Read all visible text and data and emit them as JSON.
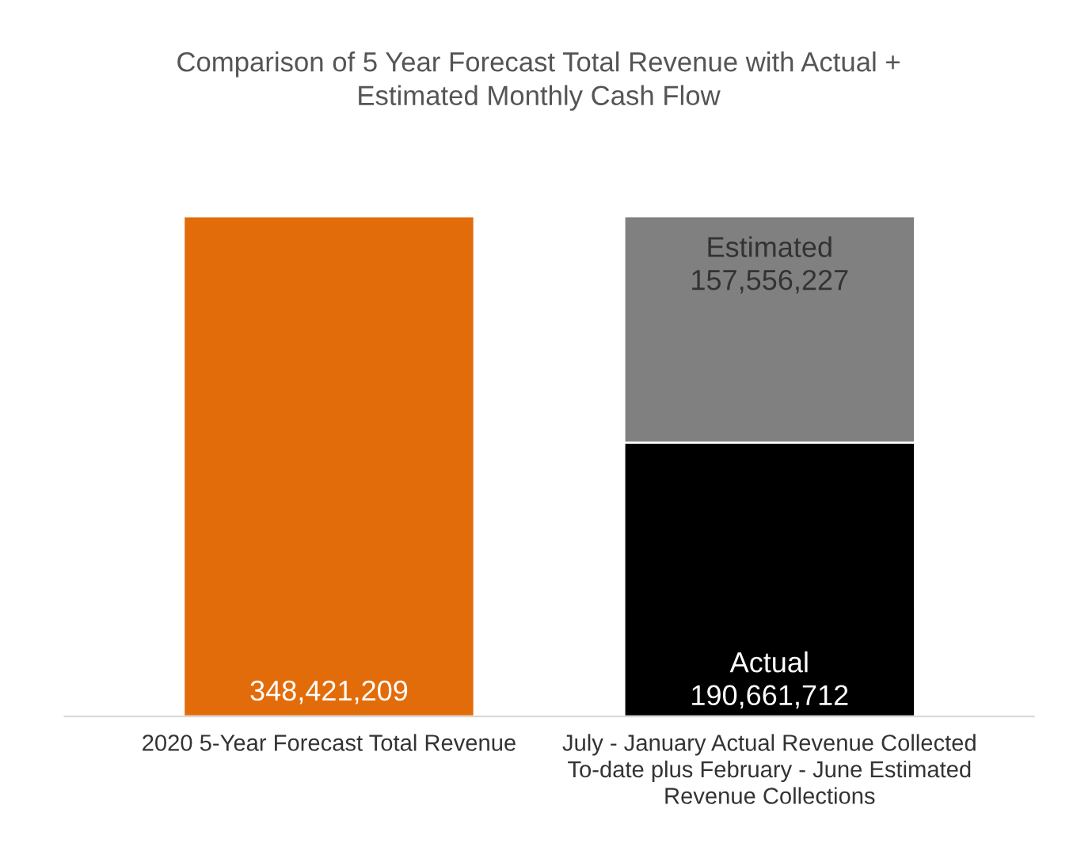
{
  "chart_data": {
    "type": "bar",
    "stacked": true,
    "title": "Comparison of 5 Year Forecast Total Revenue with Actual +\nEstimated Monthly Cash Flow",
    "categories": [
      "2020 5-Year Forecast Total Revenue",
      "July - January Actual Revenue Collected\nTo-date plus February - June Estimated\nRevenue Collections"
    ],
    "series": [
      {
        "color": "#e36c0a",
        "values": [
          348421209,
          null
        ],
        "value_labels": [
          "348,421,209",
          null
        ]
      },
      {
        "name": "Actual",
        "color": "#000000",
        "values": [
          null,
          190661712
        ],
        "value_labels": [
          null,
          "190,661,712"
        ]
      },
      {
        "name": "Estimated",
        "color": "#808080",
        "values": [
          null,
          157556227
        ],
        "value_labels": [
          null,
          "157,556,227"
        ]
      }
    ],
    "grid": false,
    "legend": false
  }
}
